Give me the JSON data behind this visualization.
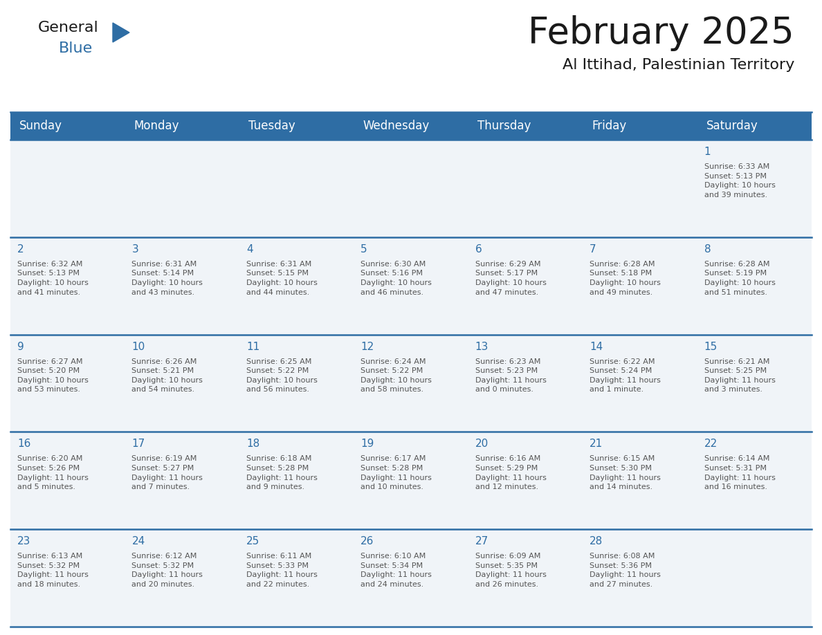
{
  "title": "February 2025",
  "subtitle": "Al Ittihad, Palestinian Territory",
  "header_color": "#2E6DA4",
  "header_text_color": "#FFFFFF",
  "grid_line_color": "#2E6DA4",
  "day_number_color": "#2E6DA4",
  "text_color": "#555555",
  "bg_color": "#FFFFFF",
  "cell_bg_color": "#F0F4F8",
  "days_of_week": [
    "Sunday",
    "Monday",
    "Tuesday",
    "Wednesday",
    "Thursday",
    "Friday",
    "Saturday"
  ],
  "weeks": [
    [
      {
        "day": null,
        "info": null
      },
      {
        "day": null,
        "info": null
      },
      {
        "day": null,
        "info": null
      },
      {
        "day": null,
        "info": null
      },
      {
        "day": null,
        "info": null
      },
      {
        "day": null,
        "info": null
      },
      {
        "day": 1,
        "info": "Sunrise: 6:33 AM\nSunset: 5:13 PM\nDaylight: 10 hours\nand 39 minutes."
      }
    ],
    [
      {
        "day": 2,
        "info": "Sunrise: 6:32 AM\nSunset: 5:13 PM\nDaylight: 10 hours\nand 41 minutes."
      },
      {
        "day": 3,
        "info": "Sunrise: 6:31 AM\nSunset: 5:14 PM\nDaylight: 10 hours\nand 43 minutes."
      },
      {
        "day": 4,
        "info": "Sunrise: 6:31 AM\nSunset: 5:15 PM\nDaylight: 10 hours\nand 44 minutes."
      },
      {
        "day": 5,
        "info": "Sunrise: 6:30 AM\nSunset: 5:16 PM\nDaylight: 10 hours\nand 46 minutes."
      },
      {
        "day": 6,
        "info": "Sunrise: 6:29 AM\nSunset: 5:17 PM\nDaylight: 10 hours\nand 47 minutes."
      },
      {
        "day": 7,
        "info": "Sunrise: 6:28 AM\nSunset: 5:18 PM\nDaylight: 10 hours\nand 49 minutes."
      },
      {
        "day": 8,
        "info": "Sunrise: 6:28 AM\nSunset: 5:19 PM\nDaylight: 10 hours\nand 51 minutes."
      }
    ],
    [
      {
        "day": 9,
        "info": "Sunrise: 6:27 AM\nSunset: 5:20 PM\nDaylight: 10 hours\nand 53 minutes."
      },
      {
        "day": 10,
        "info": "Sunrise: 6:26 AM\nSunset: 5:21 PM\nDaylight: 10 hours\nand 54 minutes."
      },
      {
        "day": 11,
        "info": "Sunrise: 6:25 AM\nSunset: 5:22 PM\nDaylight: 10 hours\nand 56 minutes."
      },
      {
        "day": 12,
        "info": "Sunrise: 6:24 AM\nSunset: 5:22 PM\nDaylight: 10 hours\nand 58 minutes."
      },
      {
        "day": 13,
        "info": "Sunrise: 6:23 AM\nSunset: 5:23 PM\nDaylight: 11 hours\nand 0 minutes."
      },
      {
        "day": 14,
        "info": "Sunrise: 6:22 AM\nSunset: 5:24 PM\nDaylight: 11 hours\nand 1 minute."
      },
      {
        "day": 15,
        "info": "Sunrise: 6:21 AM\nSunset: 5:25 PM\nDaylight: 11 hours\nand 3 minutes."
      }
    ],
    [
      {
        "day": 16,
        "info": "Sunrise: 6:20 AM\nSunset: 5:26 PM\nDaylight: 11 hours\nand 5 minutes."
      },
      {
        "day": 17,
        "info": "Sunrise: 6:19 AM\nSunset: 5:27 PM\nDaylight: 11 hours\nand 7 minutes."
      },
      {
        "day": 18,
        "info": "Sunrise: 6:18 AM\nSunset: 5:28 PM\nDaylight: 11 hours\nand 9 minutes."
      },
      {
        "day": 19,
        "info": "Sunrise: 6:17 AM\nSunset: 5:28 PM\nDaylight: 11 hours\nand 10 minutes."
      },
      {
        "day": 20,
        "info": "Sunrise: 6:16 AM\nSunset: 5:29 PM\nDaylight: 11 hours\nand 12 minutes."
      },
      {
        "day": 21,
        "info": "Sunrise: 6:15 AM\nSunset: 5:30 PM\nDaylight: 11 hours\nand 14 minutes."
      },
      {
        "day": 22,
        "info": "Sunrise: 6:14 AM\nSunset: 5:31 PM\nDaylight: 11 hours\nand 16 minutes."
      }
    ],
    [
      {
        "day": 23,
        "info": "Sunrise: 6:13 AM\nSunset: 5:32 PM\nDaylight: 11 hours\nand 18 minutes."
      },
      {
        "day": 24,
        "info": "Sunrise: 6:12 AM\nSunset: 5:32 PM\nDaylight: 11 hours\nand 20 minutes."
      },
      {
        "day": 25,
        "info": "Sunrise: 6:11 AM\nSunset: 5:33 PM\nDaylight: 11 hours\nand 22 minutes."
      },
      {
        "day": 26,
        "info": "Sunrise: 6:10 AM\nSunset: 5:34 PM\nDaylight: 11 hours\nand 24 minutes."
      },
      {
        "day": 27,
        "info": "Sunrise: 6:09 AM\nSunset: 5:35 PM\nDaylight: 11 hours\nand 26 minutes."
      },
      {
        "day": 28,
        "info": "Sunrise: 6:08 AM\nSunset: 5:36 PM\nDaylight: 11 hours\nand 27 minutes."
      },
      {
        "day": null,
        "info": null
      }
    ]
  ],
  "logo_text_general": "General",
  "logo_text_blue": "Blue",
  "logo_color_general": "#1a1a1a",
  "logo_color_blue": "#2E6DA4",
  "logo_triangle_color": "#2E6DA4",
  "title_fontsize": 38,
  "subtitle_fontsize": 16,
  "header_fontsize": 12,
  "day_num_fontsize": 11,
  "info_fontsize": 8
}
